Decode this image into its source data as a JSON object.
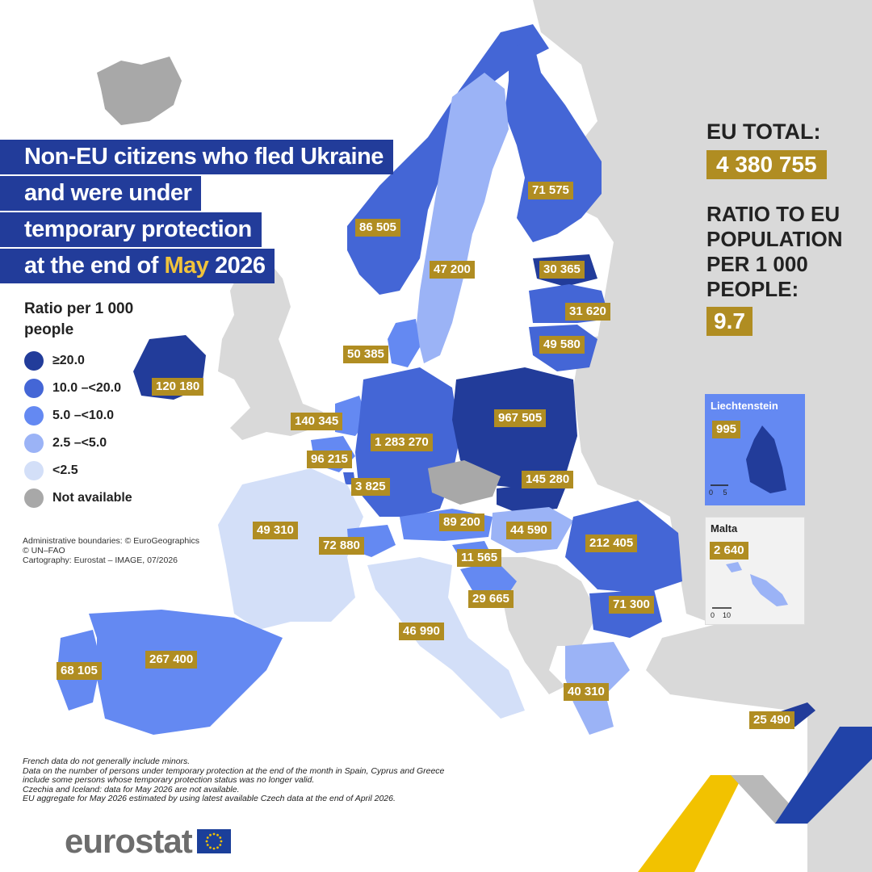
{
  "title": {
    "line1": "Non-EU citizens who fled Ukraine",
    "line2": "and were under",
    "line3": "temporary protection",
    "line4_prefix": "at the end of",
    "line4_month": "May",
    "line4_year": "2026"
  },
  "legend": {
    "title": "Ratio per 1 000 people",
    "items": [
      {
        "label": "≥20.0",
        "color": "#223c9a"
      },
      {
        "label": "10.0 –<20.0",
        "color": "#4466d6"
      },
      {
        "label": "5.0 –<10.0",
        "color": "#6489f2"
      },
      {
        "label": "2.5 –<5.0",
        "color": "#9bb3f6"
      },
      {
        "label": "<2.5",
        "color": "#d3dff8"
      },
      {
        "label": "Not available",
        "color": "#a8a8a8"
      }
    ]
  },
  "credits": {
    "line1": "Administrative boundaries: © EuroGeographics",
    "line2": "© UN–FAO",
    "line3": "Cartography: Eurostat – IMAGE, 07/2026"
  },
  "summary": {
    "eu_total_label": "EU TOTAL:",
    "eu_total_value": "4 380 755",
    "ratio_label": "RATIO TO EU POPULATION PER 1 000 PEOPLE:",
    "ratio_value": "9.7"
  },
  "country_values": {
    "norway": "86 505",
    "finland": "71 575",
    "sweden": "47 200",
    "estonia": "30 365",
    "latvia": "31 620",
    "lithuania": "49 580",
    "denmark": "50 385",
    "ireland": "120 180",
    "netherlands": "140 345",
    "belgium": "96 215",
    "luxembourg": "3 825",
    "germany": "1 283 270",
    "poland": "967 505",
    "slovakia": "145 280",
    "france": "49 310",
    "switzerland": "72 880",
    "austria": "89 200",
    "hungary": "44 590",
    "romania": "212 405",
    "slovenia": "11 565",
    "croatia": "29 665",
    "italy": "46 990",
    "bulgaria": "71 300",
    "portugal": "68 105",
    "spain": "267 400",
    "greece": "40 310",
    "cyprus": "25 490"
  },
  "insets": {
    "liechtenstein": {
      "name": "Liechtenstein",
      "value": "995",
      "scale": [
        "0",
        "5"
      ]
    },
    "malta": {
      "name": "Malta",
      "value": "2 640",
      "scale": [
        "0",
        "10"
      ]
    }
  },
  "footnotes": [
    "French data do not generally include minors.",
    "Data on the number of persons under temporary protection at the end of the month in Spain, Cyprus and Greece",
    "include some persons whose temporary protection status was no longer valid.",
    "Czechia and Iceland: data for May 2026 are not available.",
    "EU aggregate for May 2026 estimated by using latest available Czech data at the end of April 2026."
  ],
  "logo": {
    "text": "eurostat"
  }
}
